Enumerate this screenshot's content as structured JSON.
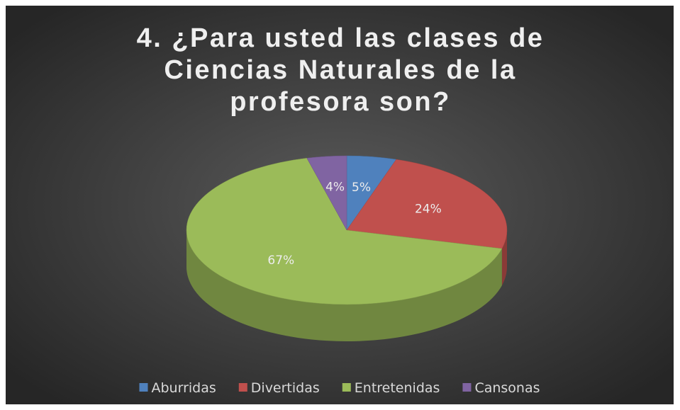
{
  "chart_data": {
    "type": "pie",
    "title": "4. ¿Para usted las clases de Ciencias Naturales de la profesora son?",
    "categories": [
      "Aburridas",
      "Divertidas",
      "Entretenidas",
      "Cansonas"
    ],
    "values": [
      5,
      24,
      67,
      4
    ],
    "value_labels": [
      "5%",
      "24%",
      "67%",
      "4%"
    ],
    "colors": [
      "#4f81bd",
      "#c0504d",
      "#9bbb59",
      "#8064a2"
    ],
    "legend": "bottom"
  }
}
